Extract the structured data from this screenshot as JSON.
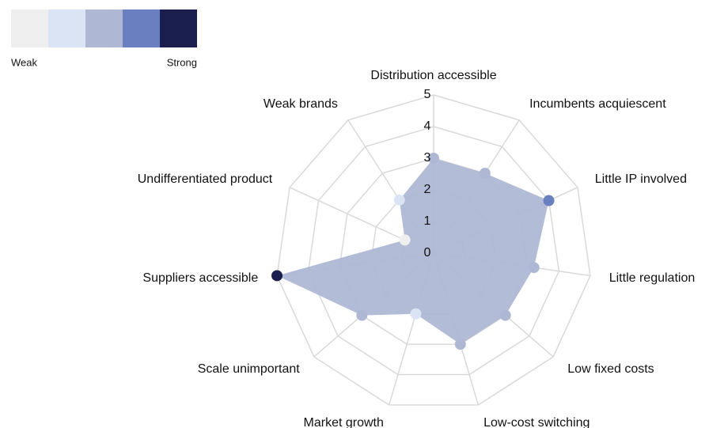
{
  "chart_data": {
    "type": "radar",
    "categories": [
      "Distribution accessible",
      "Incumbents acquiescent",
      "Little IP involved",
      "Little regulation",
      "Low fixed costs",
      "Low-cost switching",
      "Market growth",
      "Scale unimportant",
      "Suppliers accessible",
      "Undifferentiated product",
      "Weak brands"
    ],
    "values": [
      3,
      3,
      4,
      3.2,
      3,
      3,
      2,
      3,
      5,
      1,
      2
    ],
    "color": "#aeb8d4",
    "rlim": [
      0,
      5
    ],
    "rticks": [
      0,
      1,
      2,
      3,
      4,
      5
    ],
    "grid": true,
    "legend": {
      "colors": [
        "#efefef",
        "#dbe4f5",
        "#aeb8d4",
        "#6a7fc0",
        "#1b1f4f"
      ],
      "labels": [
        "Weak",
        "Strong"
      ]
    }
  }
}
